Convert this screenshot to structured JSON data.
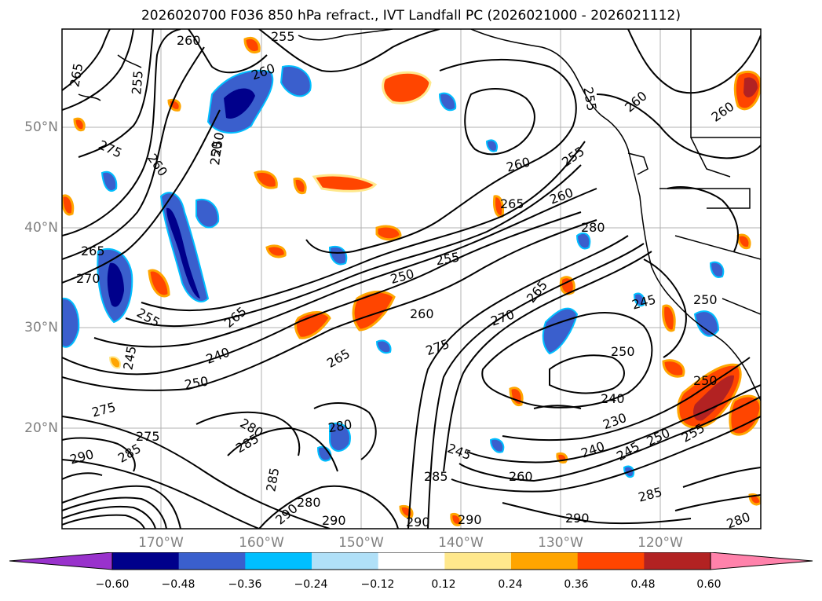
{
  "title": "2026020700 F036 850 hPa refract., IVT Landfall PC (2026021000 - 2026021112)",
  "map": {
    "projection": "cylindrical lat-lon",
    "lat_ticks": [
      "50°N",
      "40°N",
      "30°N",
      "20°N"
    ],
    "lon_ticks": [
      "170°W",
      "160°W",
      "150°W",
      "140°W",
      "130°W",
      "120°W"
    ],
    "contour_labels": [
      "260",
      "255",
      "265",
      "275",
      "250",
      "240",
      "245",
      "280",
      "285",
      "290",
      "270",
      "230"
    ]
  },
  "colorbar": {
    "tick_labels": [
      "−0.60",
      "−0.48",
      "−0.36",
      "−0.24",
      "−0.12",
      "0.12",
      "0.24",
      "0.36",
      "0.48",
      "0.60"
    ],
    "colors": [
      "#9932cc",
      "#00008b",
      "#3a5fcd",
      "#00bfff",
      "#b0e0f8",
      "#ffffff",
      "#ffe88c",
      "#ffa500",
      "#ff4500",
      "#b22222",
      "#ff82ab"
    ]
  }
}
